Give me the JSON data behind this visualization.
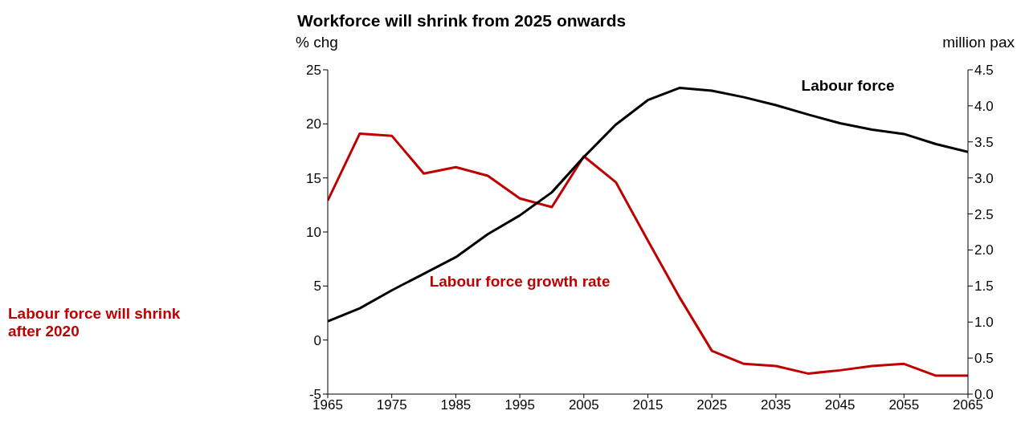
{
  "chart_data": {
    "type": "line",
    "title": "Workforce will shrink from 2025 onwards",
    "ylabel": "% chg",
    "y2label": "million pax",
    "annotations": [
      "Labour force will shrink after 2020"
    ],
    "x": [
      1965,
      1970,
      1975,
      1980,
      1985,
      1990,
      1995,
      2000,
      2005,
      2010,
      2015,
      2020,
      2025,
      2030,
      2035,
      2040,
      2045,
      2050,
      2055,
      2060,
      2065
    ],
    "series": [
      {
        "name": "Labour force growth rate",
        "color": "#c00000",
        "values": [
          12.9,
          19.1,
          18.9,
          15.4,
          16.0,
          15.2,
          13.1,
          12.3,
          17.0,
          14.6,
          9.2,
          3.9,
          -1.0,
          -2.2,
          -2.4,
          -3.1,
          -2.8,
          -2.4,
          -2.2,
          -3.3,
          -3.3
        ]
      },
      {
        "name": "Labour force",
        "color": "#000000",
        "axis": "y2",
        "values": [
          1.01,
          1.19,
          1.44,
          1.67,
          1.9,
          2.22,
          2.48,
          2.8,
          3.29,
          3.74,
          4.08,
          4.25,
          4.21,
          4.12,
          4.01,
          3.88,
          3.76,
          3.67,
          3.61,
          3.47,
          3.36
        ]
      }
    ],
    "xlim": [
      1965,
      2065
    ],
    "xticks": [
      1965,
      1975,
      1985,
      1995,
      2005,
      2015,
      2025,
      2035,
      2045,
      2055,
      2065
    ],
    "ylim": [
      -5,
      25
    ],
    "yticks": [
      -5,
      0,
      5,
      10,
      15,
      20,
      25
    ],
    "y2lim": [
      0,
      4.5
    ],
    "y2ticks": [
      {
        "value": 0,
        "label": "0.0"
      },
      {
        "value": 0.5,
        "label": "0.5"
      },
      {
        "value": 1,
        "label": "1.0"
      },
      {
        "value": 1.5,
        "label": "1.5"
      },
      {
        "value": 2,
        "label": "2.0"
      },
      {
        "value": 2.5,
        "label": "2.5"
      },
      {
        "value": 3,
        "label": "3.0"
      },
      {
        "value": 3.5,
        "label": "3.5"
      },
      {
        "value": 4,
        "label": "4.0"
      },
      {
        "value": 4.5,
        "label": "4.5"
      }
    ],
    "grid": false,
    "legend": false,
    "marker": "none",
    "line_style": "solid"
  }
}
